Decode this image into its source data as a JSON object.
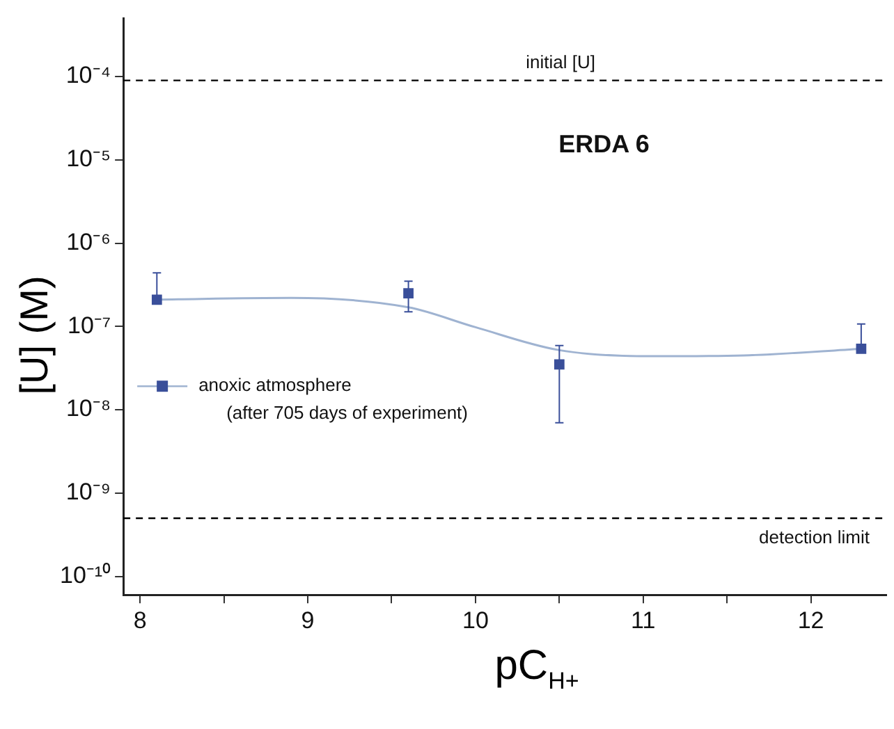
{
  "chart_data": {
    "type": "scatter",
    "title": "ERDA 6",
    "xlabel": "pC$_{H+}$",
    "ylabel": "[U] (M)",
    "xlim": [
      7.9,
      12.45
    ],
    "xticks": [
      8,
      {
        "value": 8.5,
        "label": null
      },
      9,
      {
        "value": 9.5,
        "label": null
      },
      10,
      {
        "value": 10.5,
        "label": null
      },
      11,
      {
        "value": 11.5,
        "label": null
      },
      12
    ],
    "ylim": [
      6e-11,
      0.0005
    ],
    "log": "y",
    "yticks": [
      {
        "value": 0.0001,
        "label": "10⁻⁴"
      },
      {
        "value": 1e-05,
        "label": "10⁻⁵"
      },
      {
        "value": 1e-06,
        "label": "10⁻⁶"
      },
      {
        "value": 1e-07,
        "label": "10⁻⁷"
      },
      {
        "value": 1e-08,
        "label": "10⁻⁸"
      },
      {
        "value": 1e-09,
        "label": "10⁻⁹"
      },
      {
        "value": 1e-10,
        "label": "10⁻¹⁰"
      }
    ],
    "series": [
      {
        "type": "scatter",
        "name": "anoxic atmosphere (after 705 days of experiment)",
        "color": "#3a4f9a",
        "marker": "square",
        "x": [
          8.1,
          9.6,
          10.5,
          12.3
        ],
        "values": [
          2.1e-07,
          2.5e-07,
          3.5e-08,
          5.4e-08
        ],
        "errors": [
          [
            2.1e-07,
            4.4e-07
          ],
          [
            1.5e-07,
            3.5e-07
          ],
          [
            7e-09,
            5.9e-08
          ],
          [
            5.4e-08,
            1.07e-07
          ]
        ]
      },
      {
        "type": "line",
        "color": "#9fb3d1",
        "marker": "none",
        "x": [
          8.1,
          8.9,
          9.6,
          10.0,
          10.5,
          11.05,
          11.6,
          12.3
        ],
        "values": [
          2.1e-07,
          2.2e-07,
          1.7e-07,
          9.8e-08,
          5.2e-08,
          4.4e-08,
          4.5e-08,
          5.4e-08
        ]
      }
    ],
    "ref_lines": [
      {
        "axis": "y",
        "value": 9e-05,
        "label": "initial [U]",
        "color": "#000000",
        "line_style": "dashed"
      },
      {
        "axis": "y",
        "value": 5e-10,
        "label": "detection limit",
        "color": "#000000",
        "line_style": "dashed"
      }
    ],
    "legend": "bottom left",
    "grid": false
  }
}
